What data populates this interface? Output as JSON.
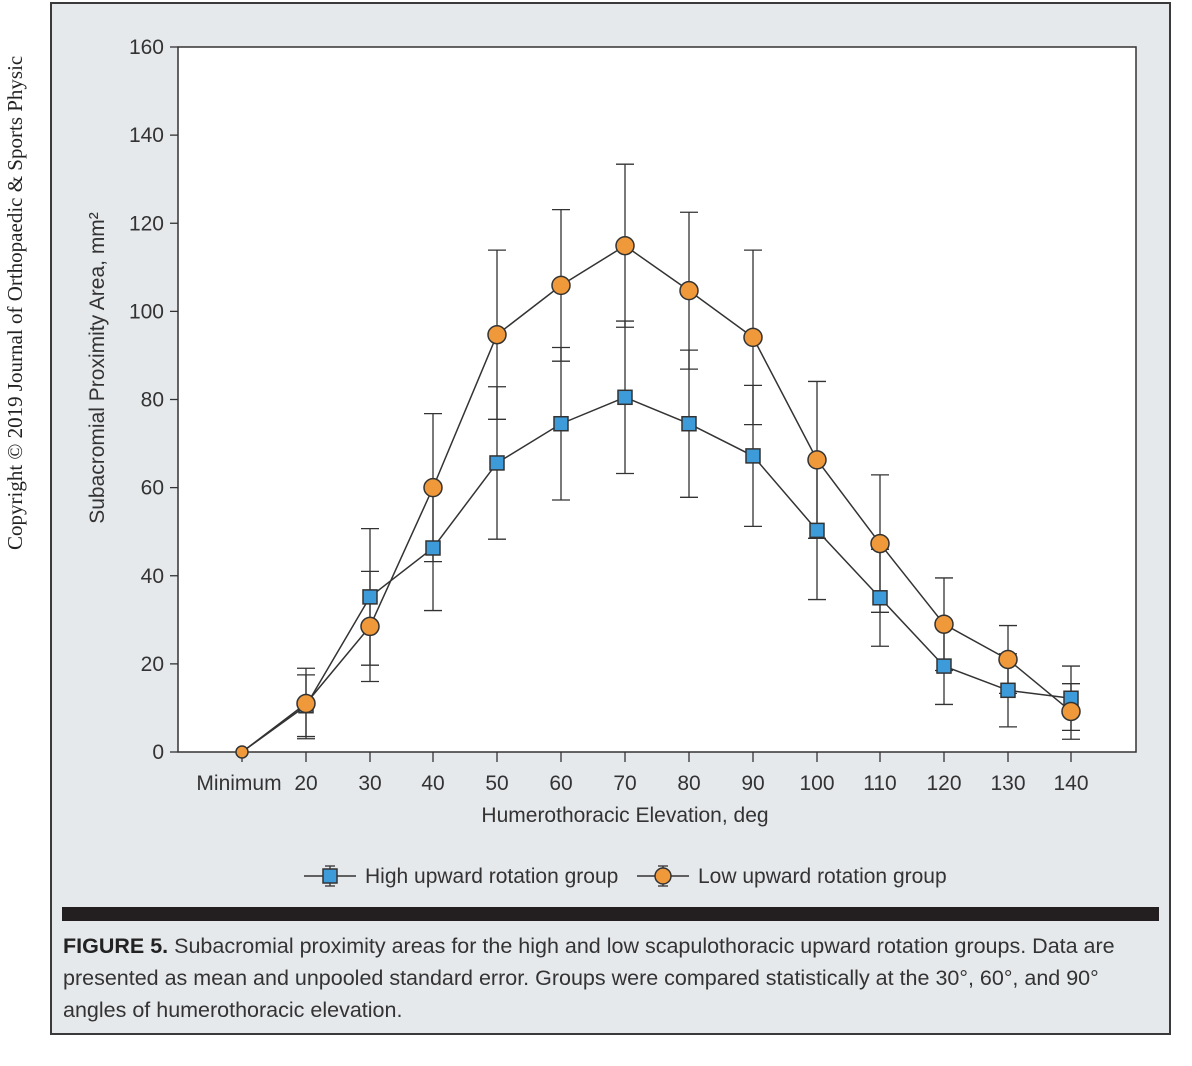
{
  "side_text": "Copyright © 2019 Journal of Orthopaedic & Sports Physic",
  "caption": {
    "label": "FIGURE 5.",
    "text": " Subacromial proximity areas for the high and low scapulothoracic upward rotation groups. Data are presented as mean and unpooled standard error. Groups were compared statistically at the 30°, 60°, and 90° angles of humerothoracic elevation."
  },
  "colors": {
    "high": "#3d9bd9",
    "low": "#f0993a",
    "line": "#333333",
    "frame_bg": "#e6e9ec"
  },
  "chart_data": {
    "type": "line",
    "title": "",
    "xlabel": "Humerothoracic Elevation, deg",
    "ylabel": "Subacromial Proximity Area, mm²",
    "categories": [
      "Minimum",
      "20",
      "30",
      "40",
      "50",
      "60",
      "70",
      "80",
      "90",
      "100",
      "110",
      "120",
      "130",
      "140"
    ],
    "ylim": [
      0,
      160
    ],
    "yticks": [
      0,
      20,
      40,
      60,
      80,
      100,
      120,
      140,
      160
    ],
    "legend_position": "bottom-center",
    "series": [
      {
        "name": "High upward rotation group",
        "marker": "square",
        "values": [
          0,
          10.5,
          35.2,
          46.3,
          65.6,
          74.5,
          80.5,
          74.5,
          67.2,
          50.3,
          35.0,
          19.5,
          14.0,
          12.2
        ],
        "errors": [
          0,
          7,
          15.5,
          14.2,
          17.3,
          17.3,
          17.3,
          16.7,
          16.0,
          15.7,
          11.0,
          8.7,
          8.3,
          7.3
        ]
      },
      {
        "name": "Low upward rotation group",
        "marker": "circle",
        "values": [
          0,
          11.0,
          28.5,
          60.0,
          94.7,
          105.9,
          114.9,
          104.7,
          94.1,
          66.3,
          47.3,
          29.0,
          21.0,
          9.2
        ],
        "errors": [
          0,
          8,
          12.5,
          16.8,
          19.2,
          17.2,
          18.5,
          17.8,
          19.8,
          17.8,
          15.6,
          10.5,
          7.7,
          6.3
        ]
      }
    ]
  }
}
